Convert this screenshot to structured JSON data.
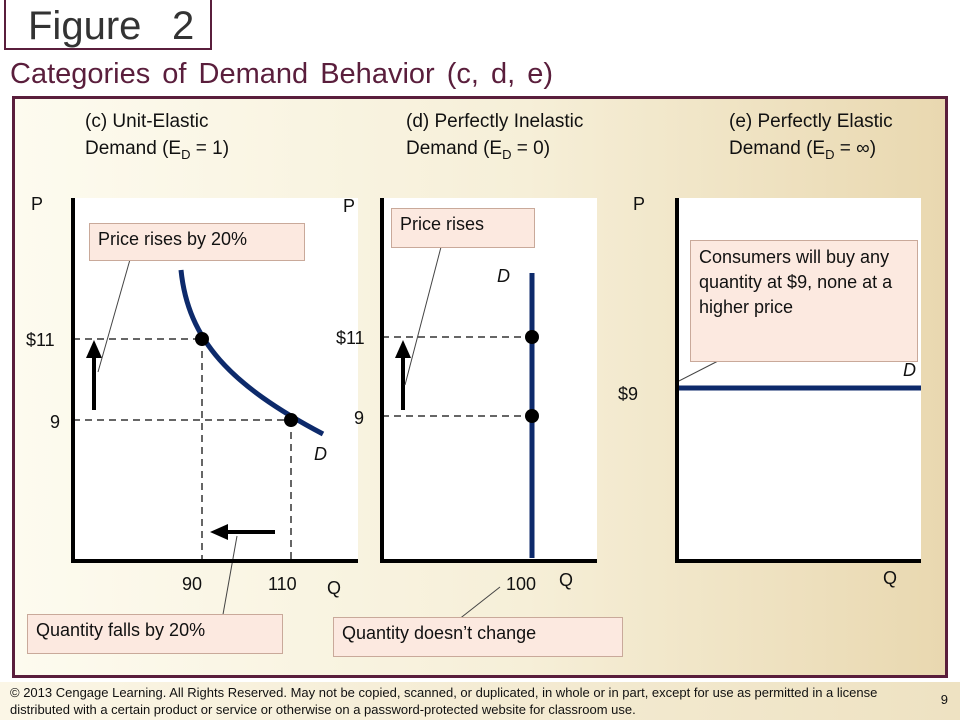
{
  "figure": {
    "word": "Figure",
    "number": "2"
  },
  "heading": "Categories of Demand Behavior (c, d, e)",
  "panels": {
    "c": {
      "title_line1": "(c) Unit-Elastic",
      "title_line2_prefix": "Demand (E",
      "subscript": "D",
      "title_line2_suffix": " = 1)",
      "y_axis": "P",
      "x_axis": "Q",
      "price_high": "$11",
      "price_low": "9",
      "qty_low": "90",
      "qty_high": "110",
      "curve_label": "D",
      "callout_price": "Price rises by 20%",
      "callout_qty": "Quantity falls by 20%"
    },
    "d": {
      "title_line1": "(d) Perfectly Inelastic",
      "title_line2_prefix": "Demand (E",
      "subscript": "D",
      "title_line2_suffix": " = 0)",
      "y_axis": "P",
      "x_axis": "Q",
      "price_high": "$11",
      "price_low": "9",
      "qty": "100",
      "curve_label": "D",
      "callout_price": "Price rises",
      "callout_qty": "Quantity doesn’t change"
    },
    "e": {
      "title_line1": "(e) Perfectly Elastic",
      "title_line2_prefix": "Demand (E",
      "subscript": "D",
      "title_line2_suffix": " = ∞)",
      "y_axis": "P",
      "x_axis": "Q",
      "price": "$9",
      "curve_label": "D",
      "callout": "Consumers will buy any quantity at $9, none at a higher price"
    }
  },
  "copyright": "© 2013 Cengage Learning. All Rights Reserved. May not be copied, scanned, or duplicated, in whole or in part, except for use as permitted in a license distributed with a certain product or service or otherwise on a password-protected website for classroom use.",
  "slide_number": "9",
  "colors": {
    "curve": "#0d2a6b",
    "frame": "#5a1e3c",
    "callout_fill": "#fce9e0"
  }
}
